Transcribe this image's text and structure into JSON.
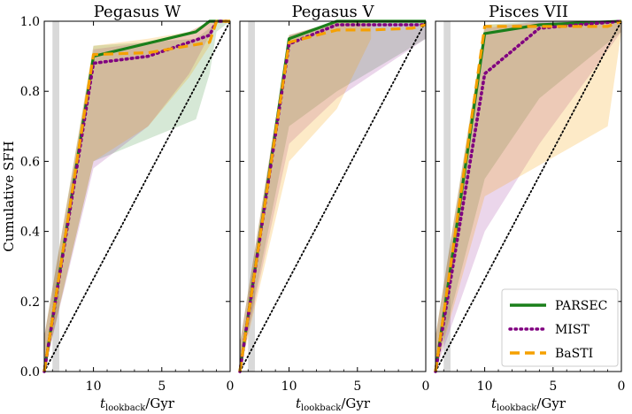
{
  "chart_data": {
    "type": "line",
    "ylabel": "Cumulative SFH",
    "xlabel_main": "t",
    "xlabel_sub": "lookback",
    "xlabel_unit": "/Gyr",
    "xlim": [
      13.6,
      0
    ],
    "ylim": [
      0,
      1.0
    ],
    "xticks": [
      10,
      5,
      0
    ],
    "yticks": [
      0.0,
      0.2,
      0.4,
      0.6,
      0.8,
      1.0
    ],
    "ytick_labels": [
      "0.0",
      "0.2",
      "0.4",
      "0.6",
      "0.8",
      "1.0"
    ],
    "xtick_labels": [
      "10",
      "5",
      "0"
    ],
    "reference_line": {
      "style": "dotted",
      "color": "#000000",
      "points": [
        [
          13.6,
          0
        ],
        [
          0,
          1
        ]
      ]
    },
    "gray_band": [
      13.0,
      12.5
    ],
    "series_styles": [
      {
        "name": "PARSEC",
        "color": "#1a7f1a",
        "dash": "solid"
      },
      {
        "name": "MIST",
        "color": "#800080",
        "dash": "dotted"
      },
      {
        "name": "BaSTI",
        "color": "#f5a000",
        "dash": "dashed"
      }
    ],
    "panels": [
      {
        "title": "Pegasus W",
        "series": [
          {
            "name": "PARSEC",
            "x": [
              13.6,
              10,
              2.5,
              1.5,
              1.0,
              0
            ],
            "y": [
              0.0,
              0.9,
              0.97,
              1.0,
              1.0,
              1.0
            ]
          },
          {
            "name": "MIST",
            "x": [
              13.6,
              10,
              6,
              3,
              1.5,
              1.0,
              0
            ],
            "y": [
              0.0,
              0.88,
              0.9,
              0.94,
              0.96,
              1.0,
              1.0
            ]
          },
          {
            "name": "BaSTI",
            "x": [
              13.6,
              10,
              6,
              3,
              1.5,
              1.0,
              0
            ],
            "y": [
              0.0,
              0.905,
              0.91,
              0.93,
              0.94,
              1.0,
              1.0
            ]
          }
        ],
        "bands": [
          {
            "name": "PARSEC",
            "upper": [
              0.1,
              0.93,
              0.95,
              0.98,
              1.0,
              1.0
            ],
            "lower": [
              0.0,
              0.6,
              0.72,
              0.85,
              0.97,
              1.0
            ]
          },
          {
            "name": "MIST",
            "upper": [
              0.1,
              0.92,
              0.94,
              0.97,
              1.0,
              1.0
            ],
            "lower": [
              0.0,
              0.58,
              0.7,
              0.85,
              0.96,
              1.0
            ]
          },
          {
            "name": "BaSTI",
            "upper": [
              0.1,
              0.93,
              0.95,
              0.97,
              1.0,
              1.0
            ],
            "lower": [
              0.0,
              0.6,
              0.7,
              0.84,
              0.93,
              1.0
            ]
          }
        ]
      },
      {
        "title": "Pegasus V",
        "series": [
          {
            "name": "PARSEC",
            "x": [
              13.6,
              10,
              6.5,
              0
            ],
            "y": [
              0.0,
              0.95,
              1.0,
              1.0
            ]
          },
          {
            "name": "MIST",
            "x": [
              13.6,
              10,
              6.5,
              0
            ],
            "y": [
              0.0,
              0.935,
              0.99,
              0.99
            ]
          },
          {
            "name": "BaSTI",
            "x": [
              13.6,
              10,
              6.5,
              4,
              1.0,
              0
            ],
            "y": [
              0.0,
              0.94,
              0.975,
              0.975,
              0.98,
              0.99
            ]
          }
        ],
        "bands": [
          {
            "name": "PARSEC",
            "upper": [
              0.08,
              0.96,
              1.0,
              1.0
            ],
            "lower": [
              0.0,
              0.7,
              0.8,
              0.95
            ]
          },
          {
            "name": "MIST",
            "upper": [
              0.08,
              0.96,
              1.0,
              1.0
            ],
            "lower": [
              0.0,
              0.65,
              0.78,
              0.95
            ]
          },
          {
            "name": "BaSTI",
            "upper": [
              0.08,
              0.96,
              1.0,
              1.0
            ],
            "lower": [
              0.0,
              0.6,
              0.75,
              0.95
            ]
          }
        ]
      },
      {
        "title": "Pisces VII",
        "series": [
          {
            "name": "PARSEC",
            "x": [
              13.6,
              10,
              6,
              0
            ],
            "y": [
              0.0,
              0.965,
              0.99,
              1.0
            ]
          },
          {
            "name": "MIST",
            "x": [
              13.6,
              10,
              6,
              0
            ],
            "y": [
              0.0,
              0.85,
              0.98,
              1.0
            ]
          },
          {
            "name": "BaSTI",
            "x": [
              13.6,
              10,
              1.0,
              0
            ],
            "y": [
              0.0,
              0.985,
              0.985,
              1.0
            ]
          }
        ],
        "bands": [
          {
            "name": "PARSEC",
            "upper": [
              0.1,
              0.99,
              1.0,
              1.0
            ],
            "lower": [
              0.0,
              0.55,
              0.78,
              0.97
            ]
          },
          {
            "name": "MIST",
            "upper": [
              0.1,
              0.98,
              1.0,
              1.0
            ],
            "lower": [
              0.0,
              0.4,
              0.65,
              0.97
            ]
          },
          {
            "name": "BaSTI",
            "upper": [
              0.1,
              0.99,
              1.0,
              1.0
            ],
            "lower": [
              0.0,
              0.5,
              0.7,
              0.97
            ]
          }
        ]
      }
    ],
    "legend": {
      "location": "lower-right",
      "panel": 2,
      "entries": [
        "PARSEC",
        "MIST",
        "BaSTI"
      ]
    }
  }
}
